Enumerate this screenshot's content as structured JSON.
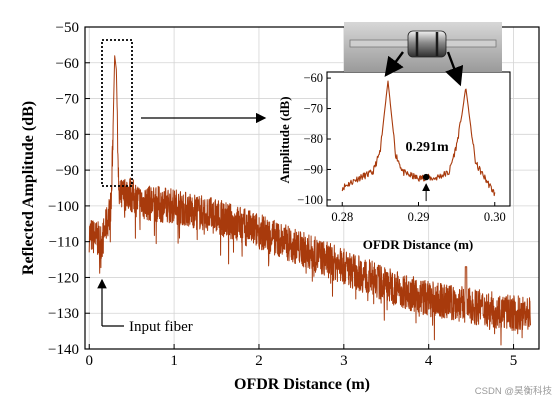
{
  "chart_data": [
    {
      "type": "line",
      "title": "",
      "xlabel": "OFDR Distance (m)",
      "ylabel": "Reflected Amplitude (dB)",
      "xlim": [
        -0.05,
        5.3
      ],
      "ylim": [
        -140,
        -50
      ],
      "xticks": [
        0,
        1,
        2,
        3,
        4,
        5
      ],
      "yticks": [
        -140,
        -130,
        -120,
        -110,
        -100,
        -90,
        -80,
        -70,
        -60,
        -50
      ],
      "grid": true,
      "line_color": "#a83a0c",
      "series": [
        {
          "name": "",
          "description_points": {
            "x": [
              0.0,
              0.15,
              0.26,
              0.3,
              0.32,
              0.35,
              0.45,
              0.6,
              1.0,
              1.5,
              2.0,
              2.5,
              3.0,
              3.5,
              4.0,
              4.5,
              5.0,
              5.2
            ],
            "y": [
              -108,
              -110,
              -100,
              -58,
              -62,
              -98,
              -96,
              -99,
              -100,
              -103,
              -107,
              -112,
              -117,
              -122,
              -126,
              -128,
              -130,
              -130
            ]
          }
        }
      ],
      "annotations": [
        {
          "text": "Input fiber",
          "points_to": {
            "x": 0.1,
            "y": -122
          }
        }
      ]
    },
    {
      "type": "line",
      "title": "",
      "xlabel": "OFDR Distance (m)",
      "ylabel": "Amplitude (dB)",
      "xlim": [
        0.278,
        0.302
      ],
      "ylim": [
        -102,
        -58
      ],
      "xticks": [
        0.28,
        0.29,
        0.3
      ],
      "yticks": [
        -100,
        -90,
        -80,
        -70,
        -60
      ],
      "grid": false,
      "points": {
        "x": [
          0.28,
          0.282,
          0.284,
          0.285,
          0.2855,
          0.286,
          0.2865,
          0.287,
          0.288,
          0.29,
          0.291,
          0.292,
          0.294,
          0.295,
          0.2957,
          0.2962,
          0.2967,
          0.2975,
          0.299,
          0.3
        ],
        "y": [
          -96,
          -93,
          -91,
          -84,
          -72,
          -61,
          -73,
          -85,
          -91,
          -93,
          -92.5,
          -93,
          -91,
          -82,
          -72,
          -63,
          -73,
          -88,
          -94,
          -98
        ]
      },
      "annotations": [
        {
          "text": "0.291m",
          "x": 0.291,
          "y": -92.5
        }
      ]
    }
  ],
  "watermark": "CSDN @昊衡科技"
}
